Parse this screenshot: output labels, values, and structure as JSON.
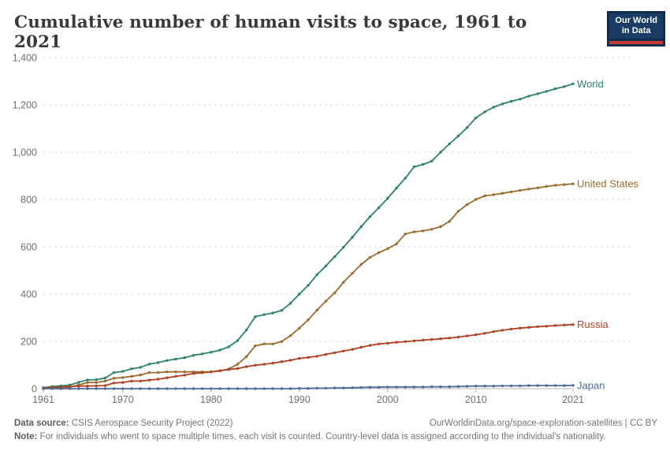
{
  "header": {
    "logo": {
      "line1": "Our World",
      "line2": "in Data"
    }
  },
  "footer": {
    "source_label": "Data source:",
    "source_text": " CSIS Aerospace Security Project (2022)",
    "link_text": "OurWorldinData.org/space-exploration-satellites | CC BY",
    "note_label": "Note:",
    "note_text": " For individuals who went to space multiple times, each visit is counted. Country-level data is assigned according to the individual's nationality."
  },
  "chart_data": {
    "type": "line",
    "title": "Cumulative number of human visits to space, 1961 to 2021",
    "xlabel": "",
    "ylabel": "",
    "xlim": [
      1961,
      2021
    ],
    "ylim": [
      0,
      1400
    ],
    "grid": "horizontal-dashed",
    "legend": "line-end-labels-right",
    "markers": "point-per-year",
    "x_ticks": [
      1961,
      1970,
      1980,
      1990,
      2000,
      2010,
      2021
    ],
    "y_ticks": [
      0,
      200,
      400,
      600,
      800,
      1000,
      1200,
      1400
    ],
    "x": [
      1961,
      1962,
      1963,
      1964,
      1965,
      1966,
      1967,
      1968,
      1969,
      1970,
      1971,
      1972,
      1973,
      1974,
      1975,
      1976,
      1977,
      1978,
      1979,
      1980,
      1981,
      1982,
      1983,
      1984,
      1985,
      1986,
      1987,
      1988,
      1989,
      1990,
      1991,
      1992,
      1993,
      1994,
      1995,
      1996,
      1997,
      1998,
      1999,
      2000,
      2001,
      2002,
      2003,
      2004,
      2005,
      2006,
      2007,
      2008,
      2009,
      2010,
      2011,
      2012,
      2013,
      2014,
      2015,
      2016,
      2017,
      2018,
      2019,
      2020,
      2021
    ],
    "series": [
      {
        "name": "World",
        "color": "#2c8465",
        "values": [
          4,
          9,
          12,
          15,
          27,
          37,
          38,
          45,
          68,
          73,
          84,
          90,
          104,
          110,
          119,
          125,
          131,
          141,
          147,
          154,
          163,
          177,
          203,
          248,
          304,
          313,
          320,
          331,
          361,
          400,
          437,
          482,
          519,
          558,
          598,
          640,
          685,
          727,
          765,
          805,
          848,
          890,
          938,
          948,
          962,
          1000,
          1035,
          1068,
          1104,
          1145,
          1170,
          1190,
          1204,
          1215,
          1224,
          1237,
          1247,
          1257,
          1268,
          1277,
          1289
        ]
      },
      {
        "name": "United States",
        "color": "#9c6b2f",
        "values": [
          2,
          5,
          6,
          6,
          16,
          26,
          26,
          32,
          44,
          47,
          52,
          58,
          68,
          68,
          71,
          71,
          71,
          71,
          71,
          71,
          75,
          83,
          103,
          135,
          181,
          189,
          189,
          199,
          224,
          256,
          291,
          332,
          370,
          405,
          450,
          488,
          525,
          555,
          575,
          592,
          612,
          654,
          663,
          667,
          674,
          685,
          707,
          750,
          778,
          800,
          815,
          820,
          826,
          832,
          838,
          844,
          849,
          855,
          860,
          863,
          866
        ]
      },
      {
        "name": "Russia",
        "color": "#b04123",
        "values": [
          2,
          4,
          6,
          9,
          11,
          11,
          12,
          13,
          24,
          26,
          32,
          32,
          36,
          40,
          46,
          52,
          57,
          64,
          67,
          71,
          76,
          81,
          85,
          93,
          99,
          103,
          108,
          114,
          120,
          128,
          132,
          137,
          145,
          152,
          159,
          166,
          175,
          183,
          189,
          192,
          196,
          199,
          202,
          205,
          208,
          211,
          214,
          218,
          223,
          228,
          234,
          241,
          247,
          252,
          256,
          259,
          262,
          264,
          267,
          269,
          271
        ]
      },
      {
        "name": "Japan",
        "color": "#4c6a9c",
        "values": [
          0,
          0,
          0,
          0,
          0,
          0,
          0,
          0,
          0,
          0,
          0,
          0,
          0,
          0,
          0,
          0,
          0,
          0,
          0,
          0,
          0,
          0,
          0,
          0,
          0,
          0,
          0,
          0,
          0,
          1,
          1,
          2,
          2,
          3,
          3,
          4,
          5,
          6,
          6,
          7,
          7,
          7,
          7,
          7,
          8,
          8,
          8,
          9,
          10,
          11,
          11,
          11,
          12,
          12,
          12,
          13,
          13,
          13,
          13,
          13,
          14
        ]
      }
    ]
  }
}
